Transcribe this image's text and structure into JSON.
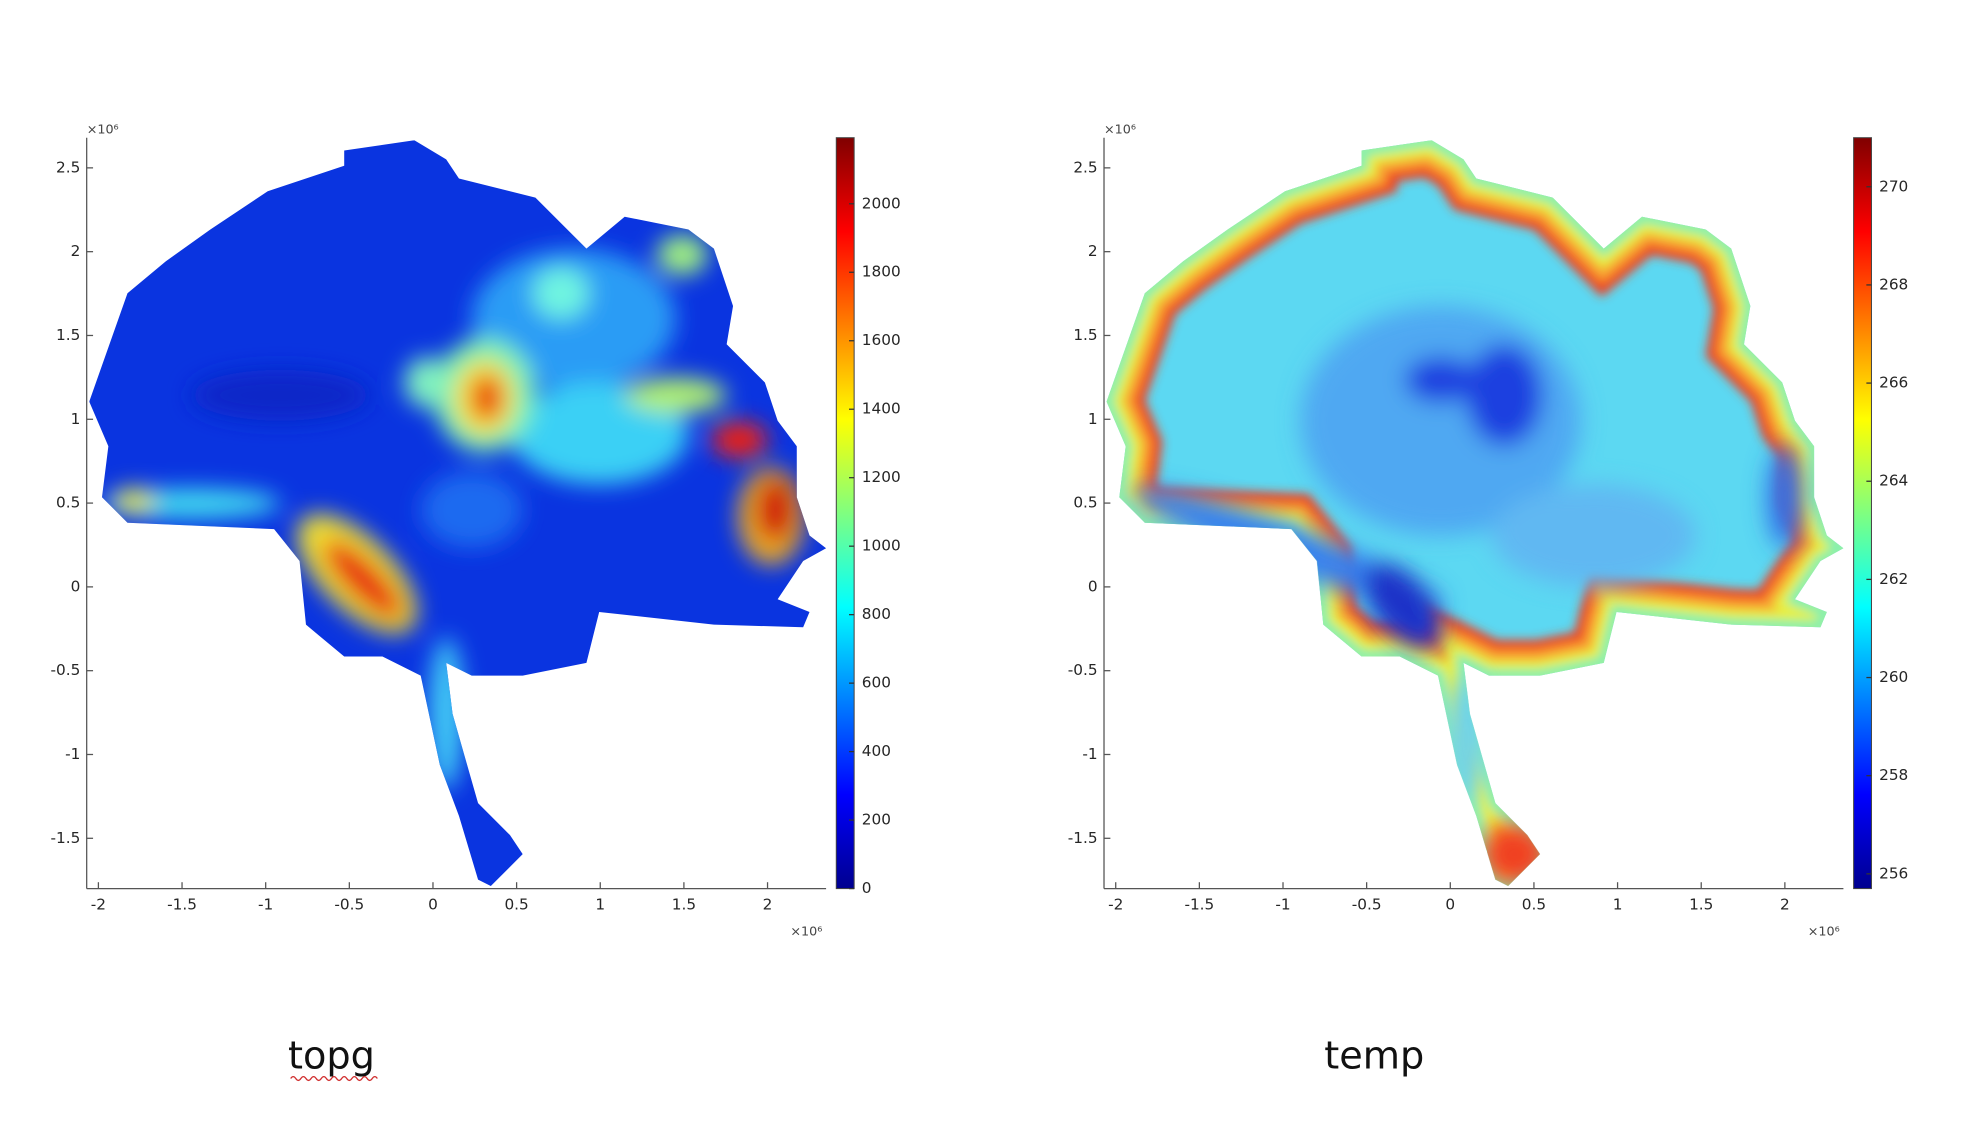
{
  "chart_data": [
    {
      "type": "heatmap",
      "caption": "topg",
      "colormap": "jet",
      "xlim": [
        -2.07,
        2.35
      ],
      "ylim": [
        -1.8,
        2.68
      ],
      "xticks": [
        -2,
        -1.5,
        -1,
        -0.5,
        0,
        0.5,
        1,
        1.5,
        2
      ],
      "yticks": [
        -1.5,
        -1,
        -0.5,
        0,
        0.5,
        1,
        1.5,
        2,
        2.5
      ],
      "x_exponent": "×10⁶",
      "y_exponent": "×10⁶",
      "colorbar": {
        "lim": [
          0,
          2193
        ],
        "ticks": [
          0,
          200,
          400,
          600,
          800,
          1000,
          1200,
          1400,
          1600,
          1800,
          2000
        ]
      }
    },
    {
      "type": "heatmap",
      "caption": "temp",
      "colormap": "jet",
      "xlim": [
        -2.07,
        2.35
      ],
      "ylim": [
        -1.8,
        2.68
      ],
      "xticks": [
        -2,
        -1.5,
        -1,
        -0.5,
        0,
        0.5,
        1,
        1.5,
        2
      ],
      "yticks": [
        -1.5,
        -1,
        -0.5,
        0,
        0.5,
        1,
        1.5,
        2,
        2.5
      ],
      "x_exponent": "×10⁶",
      "y_exponent": "×10⁶",
      "colorbar": {
        "lim": [
          255.7,
          271
        ],
        "ticks": [
          256,
          258,
          260,
          262,
          264,
          266,
          268,
          270
        ]
      }
    }
  ]
}
